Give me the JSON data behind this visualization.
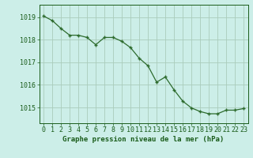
{
  "x": [
    0,
    1,
    2,
    3,
    4,
    5,
    6,
    7,
    8,
    9,
    10,
    11,
    12,
    13,
    14,
    15,
    16,
    17,
    18,
    19,
    20,
    21,
    22,
    23
  ],
  "y": [
    1019.05,
    1018.85,
    1018.5,
    1018.2,
    1018.2,
    1018.1,
    1017.78,
    1018.1,
    1018.1,
    1017.93,
    1017.65,
    1017.18,
    1016.85,
    1016.12,
    1016.35,
    1015.78,
    1015.28,
    1014.98,
    1014.82,
    1014.72,
    1014.72,
    1014.88,
    1014.88,
    1014.95
  ],
  "line_color": "#2d6b2d",
  "marker_color": "#2d6b2d",
  "bg_color": "#cceee8",
  "grid_color": "#aaccbb",
  "xlabel": "Graphe pression niveau de la mer (hPa)",
  "xlabel_color": "#1a5c1a",
  "tick_color": "#1a5c1a",
  "ylim_min": 1014.3,
  "ylim_max": 1019.55,
  "yticks": [
    1015,
    1016,
    1017,
    1018,
    1019
  ],
  "xticks": [
    0,
    1,
    2,
    3,
    4,
    5,
    6,
    7,
    8,
    9,
    10,
    11,
    12,
    13,
    14,
    15,
    16,
    17,
    18,
    19,
    20,
    21,
    22,
    23
  ],
  "linewidth": 0.9,
  "markersize": 3.5,
  "tick_fontsize": 6.0,
  "xlabel_fontsize": 6.5
}
